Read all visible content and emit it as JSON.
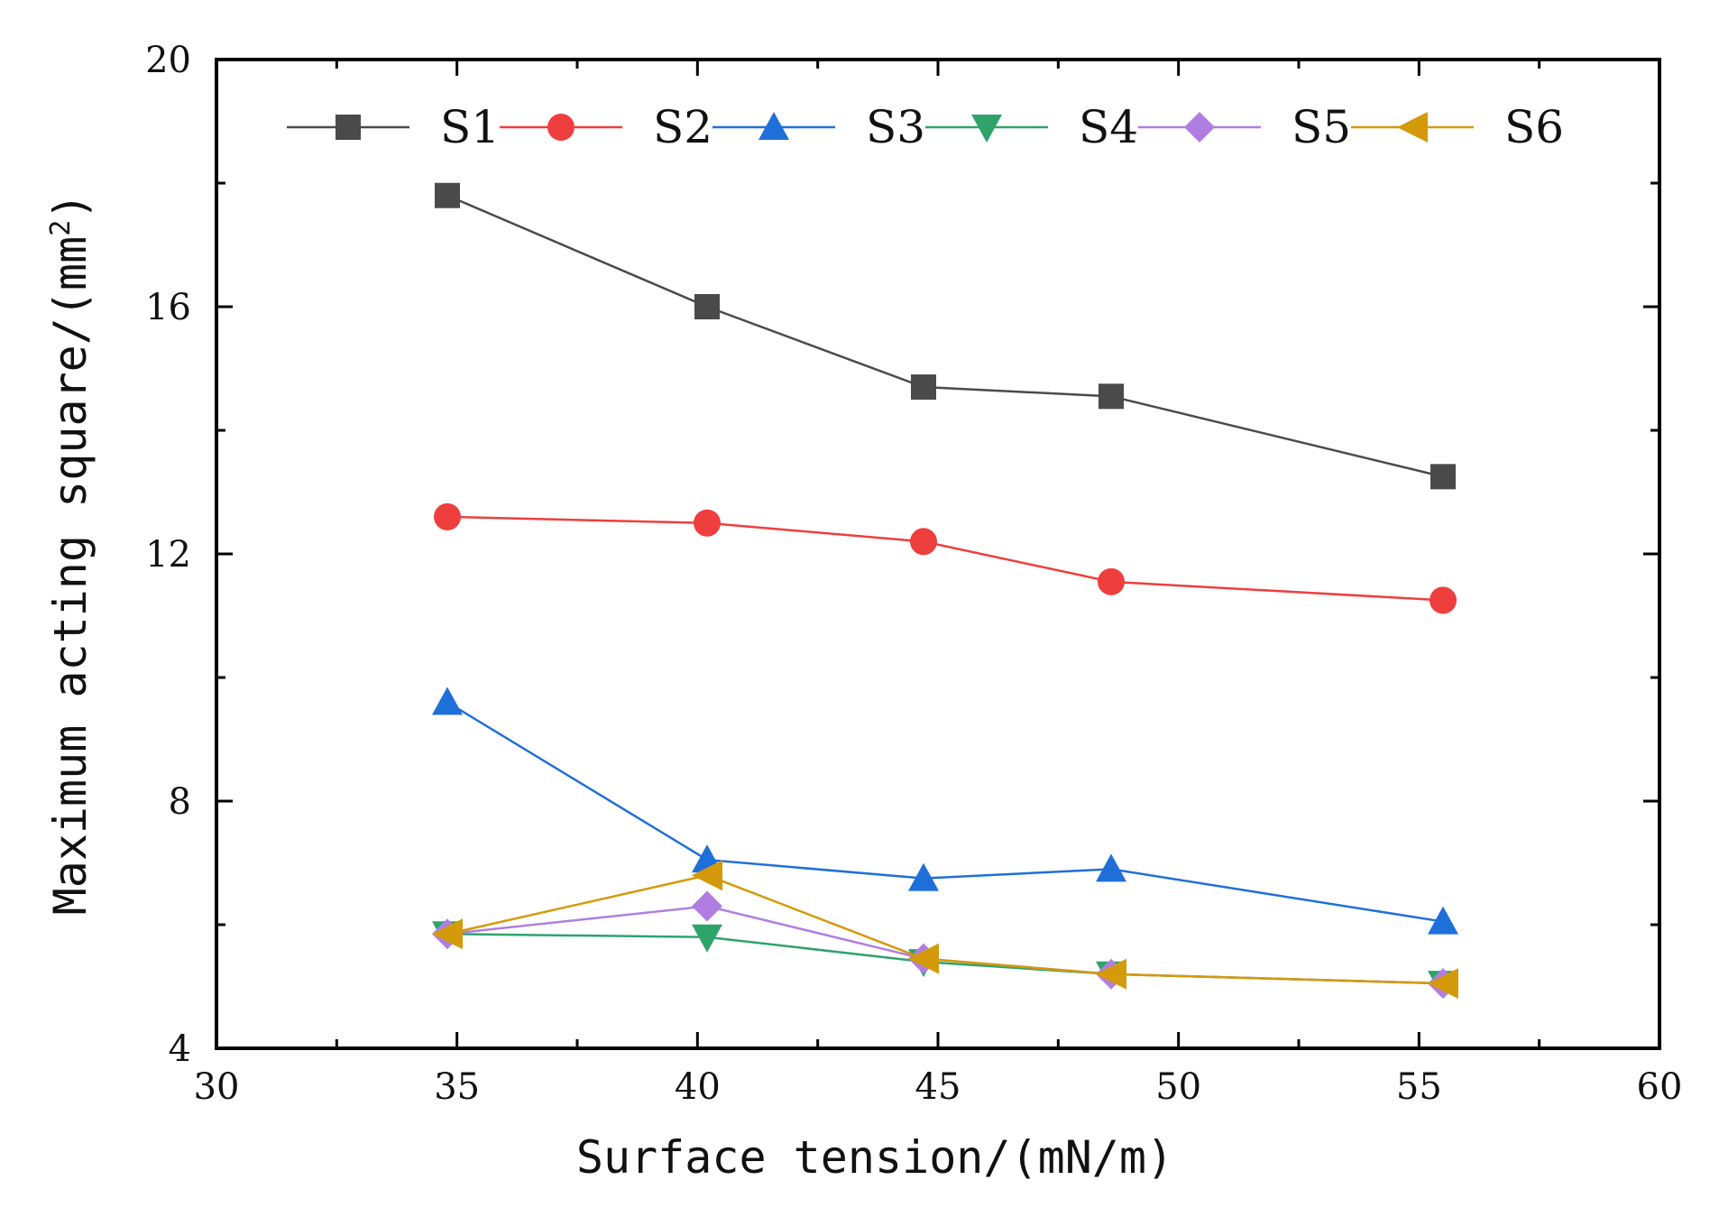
{
  "chart_data": {
    "type": "line",
    "xlabel": "Surface tension/(mN/m)",
    "ylabel_main": "Maximum acting square/(mm",
    "ylabel_sup": "2",
    "ylabel_close": ")",
    "xlim": [
      30,
      60
    ],
    "ylim": [
      4,
      20
    ],
    "x_ticks": [
      30,
      35,
      40,
      45,
      50,
      55,
      60
    ],
    "x_tick_labels": [
      "30",
      "35",
      "40",
      "45",
      "50",
      "55",
      "60"
    ],
    "y_ticks": [
      4,
      8,
      12,
      16,
      20
    ],
    "y_tick_labels": [
      "4",
      "8",
      "12",
      "16",
      "20"
    ],
    "legend_position": "top",
    "x": [
      34.8,
      40.2,
      44.7,
      48.6,
      55.5
    ],
    "series": [
      {
        "name": "S1",
        "marker": "square",
        "color": "#4a4a4a",
        "values": [
          17.8,
          16.0,
          14.7,
          14.55,
          13.25
        ]
      },
      {
        "name": "S2",
        "marker": "circle",
        "color": "#ef3e3e",
        "values": [
          12.6,
          12.5,
          12.2,
          11.55,
          11.25
        ]
      },
      {
        "name": "S3",
        "marker": "triangle-up",
        "color": "#1f6fd9",
        "values": [
          9.6,
          7.05,
          6.75,
          6.9,
          6.05
        ]
      },
      {
        "name": "S4",
        "marker": "triangle-down",
        "color": "#2ea36a",
        "values": [
          5.85,
          5.8,
          5.4,
          5.2,
          5.05
        ]
      },
      {
        "name": "S5",
        "marker": "diamond",
        "color": "#b07ee0",
        "values": [
          5.85,
          6.3,
          5.45,
          5.2,
          5.05
        ]
      },
      {
        "name": "S6",
        "marker": "triangle-left",
        "color": "#d49a0a",
        "values": [
          5.85,
          6.8,
          5.45,
          5.2,
          5.05
        ]
      }
    ]
  }
}
